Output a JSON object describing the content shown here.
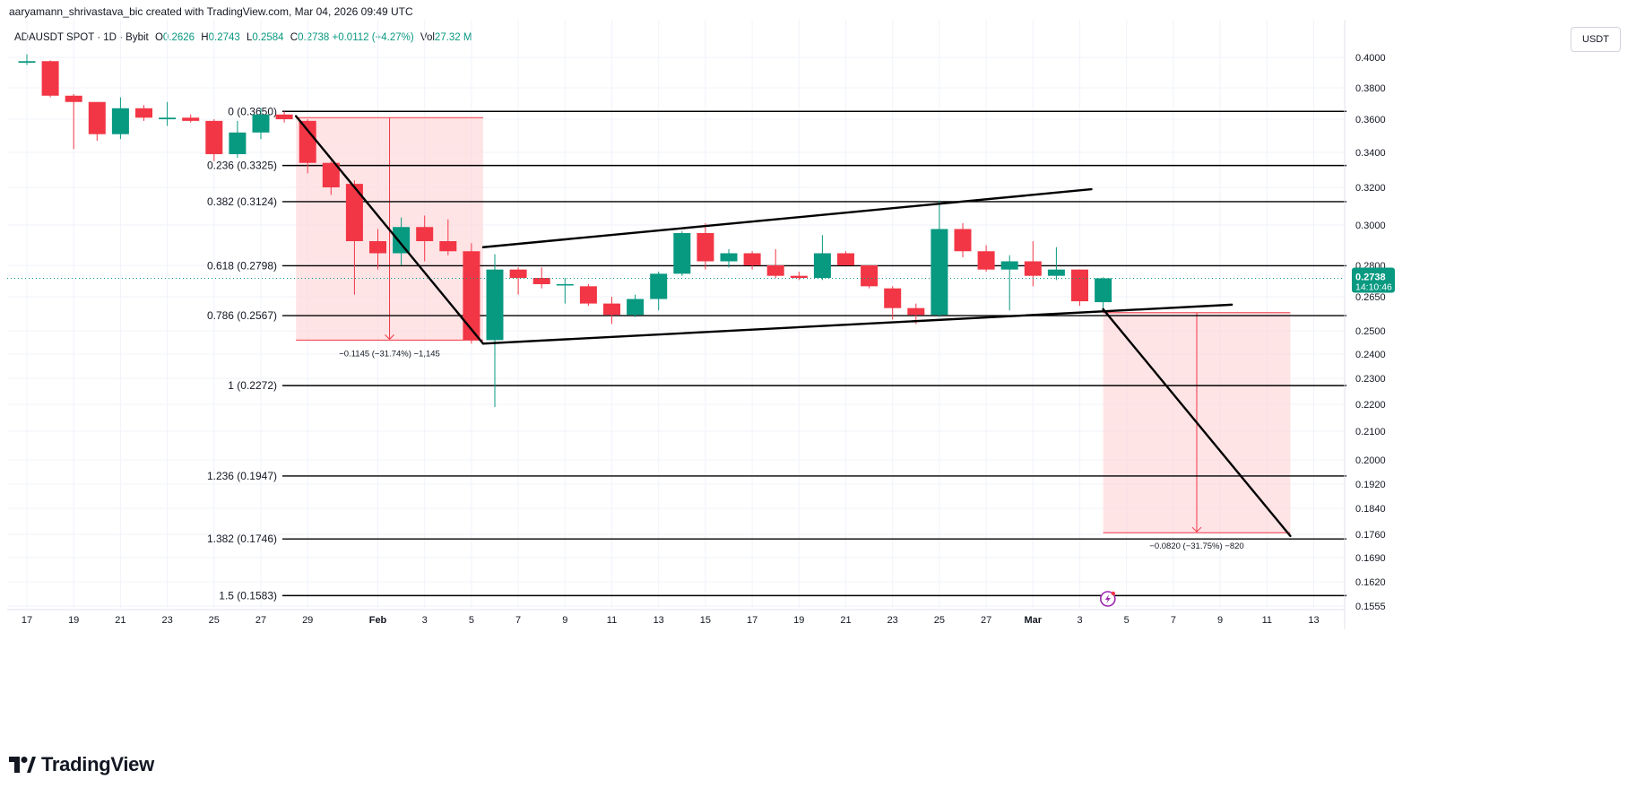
{
  "header": {
    "credit": "aaryamann_shrivastava_bic created with TradingView.com, Mar 04, 2026 09:49 UTC"
  },
  "legend": {
    "symbol": "ADAUSDT SPOT · 1D · Bybit",
    "open_label": "O",
    "open": "0.2626",
    "high_label": "H",
    "high": "0.2743",
    "low_label": "L",
    "low": "0.2584",
    "close_label": "C",
    "close": "0.2738",
    "change": "+0.0112 (+4.27%)",
    "vol_label": "Vol",
    "volume": "27.32 M"
  },
  "currency": "USDT",
  "footer": {
    "brand": "TradingView"
  },
  "colors": {
    "up": "#089981",
    "down": "#f23645",
    "fib": "#000000",
    "zone": "#ffcdd2",
    "grid": "#f0f3fa",
    "axis_text": "#131722"
  },
  "chart_data": {
    "type": "candlestick",
    "ylim": [
      0.1555,
      0.402
    ],
    "price_axis_ticks": [
      "0.4000",
      "0.3800",
      "0.3600",
      "0.3400",
      "0.3200",
      "0.3000",
      "0.2800",
      "0.2650",
      "0.2500",
      "0.2400",
      "0.2300",
      "0.2200",
      "0.2100",
      "0.2000",
      "0.1920",
      "0.1840",
      "0.1760",
      "0.1690",
      "0.1620",
      "0.1555"
    ],
    "time_axis_ticks": [
      {
        "i": 0,
        "label": "17"
      },
      {
        "i": 2,
        "label": "19"
      },
      {
        "i": 4,
        "label": "21"
      },
      {
        "i": 6,
        "label": "23"
      },
      {
        "i": 8,
        "label": "25"
      },
      {
        "i": 10,
        "label": "27"
      },
      {
        "i": 12,
        "label": "29"
      },
      {
        "i": 15,
        "label": "Feb"
      },
      {
        "i": 17,
        "label": "3"
      },
      {
        "i": 19,
        "label": "5"
      },
      {
        "i": 21,
        "label": "7"
      },
      {
        "i": 23,
        "label": "9"
      },
      {
        "i": 25,
        "label": "11"
      },
      {
        "i": 27,
        "label": "13"
      },
      {
        "i": 29,
        "label": "15"
      },
      {
        "i": 31,
        "label": "17"
      },
      {
        "i": 33,
        "label": "19"
      },
      {
        "i": 35,
        "label": "21"
      },
      {
        "i": 37,
        "label": "23"
      },
      {
        "i": 39,
        "label": "25"
      },
      {
        "i": 41,
        "label": "27"
      },
      {
        "i": 43,
        "label": "Mar"
      },
      {
        "i": 45,
        "label": "3"
      },
      {
        "i": 47,
        "label": "5"
      },
      {
        "i": 49,
        "label": "7"
      },
      {
        "i": 51,
        "label": "9"
      },
      {
        "i": 53,
        "label": "11"
      },
      {
        "i": 55,
        "label": "13"
      }
    ],
    "candles": [
      {
        "o": 0.3965,
        "h": 0.402,
        "l": 0.395,
        "c": 0.3975
      },
      {
        "o": 0.3975,
        "h": 0.398,
        "l": 0.374,
        "c": 0.375
      },
      {
        "o": 0.375,
        "h": 0.376,
        "l": 0.342,
        "c": 0.371
      },
      {
        "o": 0.371,
        "h": 0.371,
        "l": 0.347,
        "c": 0.351
      },
      {
        "o": 0.351,
        "h": 0.374,
        "l": 0.348,
        "c": 0.367
      },
      {
        "o": 0.367,
        "h": 0.369,
        "l": 0.359,
        "c": 0.361
      },
      {
        "o": 0.36,
        "h": 0.371,
        "l": 0.356,
        "c": 0.361
      },
      {
        "o": 0.361,
        "h": 0.363,
        "l": 0.358,
        "c": 0.359
      },
      {
        "o": 0.359,
        "h": 0.36,
        "l": 0.335,
        "c": 0.339
      },
      {
        "o": 0.339,
        "h": 0.359,
        "l": 0.337,
        "c": 0.352
      },
      {
        "o": 0.352,
        "h": 0.367,
        "l": 0.348,
        "c": 0.363
      },
      {
        "o": 0.363,
        "h": 0.365,
        "l": 0.358,
        "c": 0.36
      },
      {
        "o": 0.359,
        "h": 0.36,
        "l": 0.328,
        "c": 0.334
      },
      {
        "o": 0.334,
        "h": 0.335,
        "l": 0.316,
        "c": 0.32
      },
      {
        "o": 0.322,
        "h": 0.324,
        "l": 0.266,
        "c": 0.292
      },
      {
        "o": 0.292,
        "h": 0.298,
        "l": 0.278,
        "c": 0.286
      },
      {
        "o": 0.286,
        "h": 0.304,
        "l": 0.28,
        "c": 0.299
      },
      {
        "o": 0.299,
        "h": 0.305,
        "l": 0.282,
        "c": 0.292
      },
      {
        "o": 0.292,
        "h": 0.303,
        "l": 0.285,
        "c": 0.287
      },
      {
        "o": 0.287,
        "h": 0.291,
        "l": 0.2445,
        "c": 0.246
      },
      {
        "o": 0.246,
        "h": 0.2855,
        "l": 0.219,
        "c": 0.278
      },
      {
        "o": 0.278,
        "h": 0.279,
        "l": 0.266,
        "c": 0.274
      },
      {
        "o": 0.274,
        "h": 0.279,
        "l": 0.269,
        "c": 0.271
      },
      {
        "o": 0.271,
        "h": 0.274,
        "l": 0.262,
        "c": 0.271
      },
      {
        "o": 0.27,
        "h": 0.271,
        "l": 0.261,
        "c": 0.262
      },
      {
        "o": 0.262,
        "h": 0.265,
        "l": 0.253,
        "c": 0.257
      },
      {
        "o": 0.257,
        "h": 0.266,
        "l": 0.256,
        "c": 0.264
      },
      {
        "o": 0.264,
        "h": 0.277,
        "l": 0.259,
        "c": 0.276
      },
      {
        "o": 0.276,
        "h": 0.297,
        "l": 0.275,
        "c": 0.296
      },
      {
        "o": 0.296,
        "h": 0.301,
        "l": 0.278,
        "c": 0.282
      },
      {
        "o": 0.282,
        "h": 0.288,
        "l": 0.279,
        "c": 0.286
      },
      {
        "o": 0.286,
        "h": 0.287,
        "l": 0.278,
        "c": 0.28
      },
      {
        "o": 0.28,
        "h": 0.288,
        "l": 0.274,
        "c": 0.275
      },
      {
        "o": 0.275,
        "h": 0.277,
        "l": 0.273,
        "c": 0.274
      },
      {
        "o": 0.274,
        "h": 0.295,
        "l": 0.273,
        "c": 0.286
      },
      {
        "o": 0.286,
        "h": 0.287,
        "l": 0.28,
        "c": 0.28
      },
      {
        "o": 0.28,
        "h": 0.28,
        "l": 0.269,
        "c": 0.27
      },
      {
        "o": 0.269,
        "h": 0.27,
        "l": 0.255,
        "c": 0.26
      },
      {
        "o": 0.26,
        "h": 0.262,
        "l": 0.253,
        "c": 0.257
      },
      {
        "o": 0.257,
        "h": 0.313,
        "l": 0.256,
        "c": 0.298
      },
      {
        "o": 0.298,
        "h": 0.301,
        "l": 0.284,
        "c": 0.287
      },
      {
        "o": 0.287,
        "h": 0.29,
        "l": 0.277,
        "c": 0.278
      },
      {
        "o": 0.278,
        "h": 0.285,
        "l": 0.259,
        "c": 0.282
      },
      {
        "o": 0.282,
        "h": 0.292,
        "l": 0.27,
        "c": 0.275
      },
      {
        "o": 0.275,
        "h": 0.289,
        "l": 0.273,
        "c": 0.278
      },
      {
        "o": 0.278,
        "h": 0.278,
        "l": 0.261,
        "c": 0.263
      },
      {
        "o": 0.2626,
        "h": 0.2743,
        "l": 0.2584,
        "c": 0.2738
      }
    ],
    "fib_levels": [
      {
        "ratio": "0",
        "price": 0.365,
        "label": "0 (0.3650)"
      },
      {
        "ratio": "0.236",
        "price": 0.3325,
        "label": "0.236 (0.3325)"
      },
      {
        "ratio": "0.382",
        "price": 0.3124,
        "label": "0.382 (0.3124)"
      },
      {
        "ratio": "0.618",
        "price": 0.2798,
        "label": "0.618 (0.2798)"
      },
      {
        "ratio": "0.786",
        "price": 0.2567,
        "label": "0.786 (0.2567)"
      },
      {
        "ratio": "1",
        "price": 0.2272,
        "label": "1 (0.2272)"
      },
      {
        "ratio": "1.236",
        "price": 0.1947,
        "label": "1.236 (0.1947)"
      },
      {
        "ratio": "1.382",
        "price": 0.1746,
        "label": "1.382 (0.1746)"
      },
      {
        "ratio": "1.5",
        "price": 0.1583,
        "label": "1.5 (0.1583)"
      }
    ],
    "trendlines": [
      {
        "name": "drop-line",
        "from": {
          "i": 11.5,
          "p": 0.362
        },
        "to": {
          "i": 19.5,
          "p": 0.2445
        }
      },
      {
        "name": "upper-channel",
        "from": {
          "i": 19.5,
          "p": 0.289
        },
        "to": {
          "i": 45.5,
          "p": 0.319
        }
      },
      {
        "name": "lower-channel",
        "from": {
          "i": 19.5,
          "p": 0.2445
        },
        "to": {
          "i": 51.5,
          "p": 0.2615
        }
      },
      {
        "name": "projection-line",
        "from": {
          "i": 46,
          "p": 0.2595
        },
        "to": {
          "i": 54,
          "p": 0.1755
        }
      }
    ],
    "measure_zones": [
      {
        "from_i": 11.5,
        "to_i": 19.5,
        "top": 0.361,
        "bottom": 0.246,
        "label": "−0.1145 (−31.74%) −1,145"
      },
      {
        "from_i": 46,
        "to_i": 54,
        "top": 0.258,
        "bottom": 0.1765,
        "label": "−0.0820 (−31.75%) −820"
      }
    ],
    "last_price": {
      "value": "0.2738",
      "countdown": "14:10:46",
      "price": 0.2738
    }
  }
}
